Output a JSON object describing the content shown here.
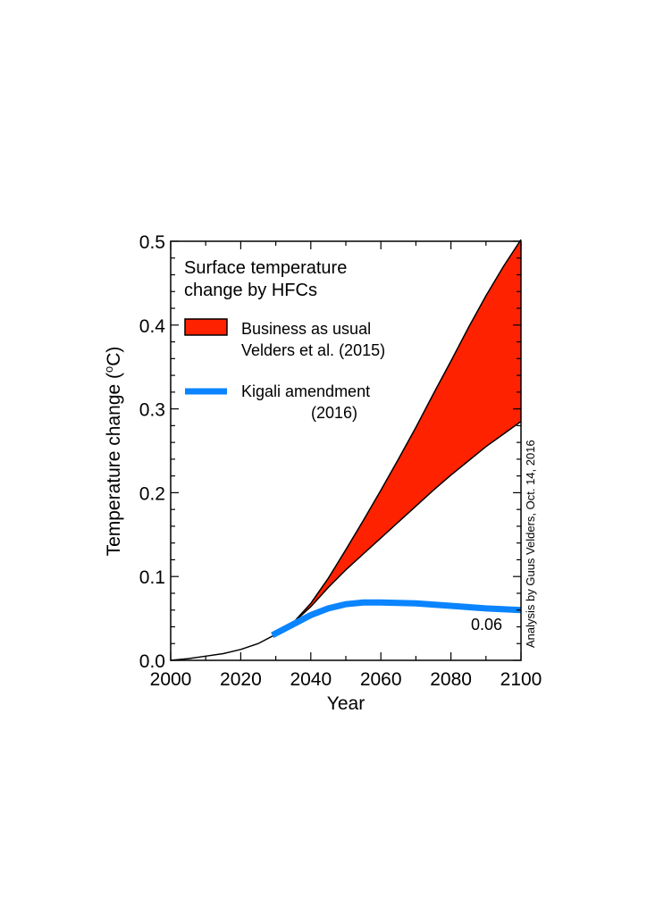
{
  "chart_data": {
    "type": "area",
    "title": "Surface temperature change by HFCs",
    "title_lines": [
      "Surface temperature",
      "change by HFCs"
    ],
    "xlabel": "Year",
    "ylabel": "Temperature change (",
    "ylabel_unit_sup": "o",
    "ylabel_unit": "C)",
    "xlim": [
      2000,
      2100
    ],
    "ylim": [
      0,
      0.5
    ],
    "xticks": [
      "2000",
      "2020",
      "2040",
      "2060",
      "2080",
      "2100"
    ],
    "yticks": [
      "0.0",
      "0.1",
      "0.2",
      "0.3",
      "0.4",
      "0.5"
    ],
    "grid": false,
    "legend_placement": "top-left",
    "historical": {
      "x": [
        2000,
        2005,
        2010,
        2015,
        2020,
        2025,
        2030,
        2035
      ],
      "y": [
        0,
        0.002,
        0.005,
        0.008,
        0.013,
        0.02,
        0.031,
        0.045
      ]
    },
    "series": [
      {
        "name": "Business as usual Velders et al. (2015)",
        "legend_lines": [
          "Business as usual",
          "Velders et al. (2015)"
        ],
        "color": "#ff2200",
        "x": [
          2035,
          2040,
          2045,
          2050,
          2055,
          2060,
          2065,
          2070,
          2075,
          2080,
          2085,
          2090,
          2095,
          2100
        ],
        "upper": [
          0.045,
          0.068,
          0.098,
          0.132,
          0.167,
          0.203,
          0.24,
          0.278,
          0.318,
          0.357,
          0.397,
          0.435,
          0.47,
          0.502
        ],
        "lower": [
          0.045,
          0.064,
          0.087,
          0.108,
          0.127,
          0.146,
          0.165,
          0.184,
          0.203,
          0.221,
          0.238,
          0.255,
          0.27,
          0.285
        ]
      },
      {
        "name": "Kigali amendment (2016)",
        "legend_lines": [
          "Kigali amendment",
          "(2016)"
        ],
        "color": "#0a84ff",
        "x": [
          2029,
          2035,
          2040,
          2045,
          2050,
          2055,
          2060,
          2070,
          2080,
          2090,
          2100
        ],
        "y": [
          0.03,
          0.043,
          0.054,
          0.062,
          0.067,
          0.069,
          0.069,
          0.068,
          0.065,
          0.062,
          0.06
        ]
      }
    ],
    "annotations": [
      "0.06",
      "Analysis by Guus Velders, Oct. 14, 2016"
    ]
  }
}
